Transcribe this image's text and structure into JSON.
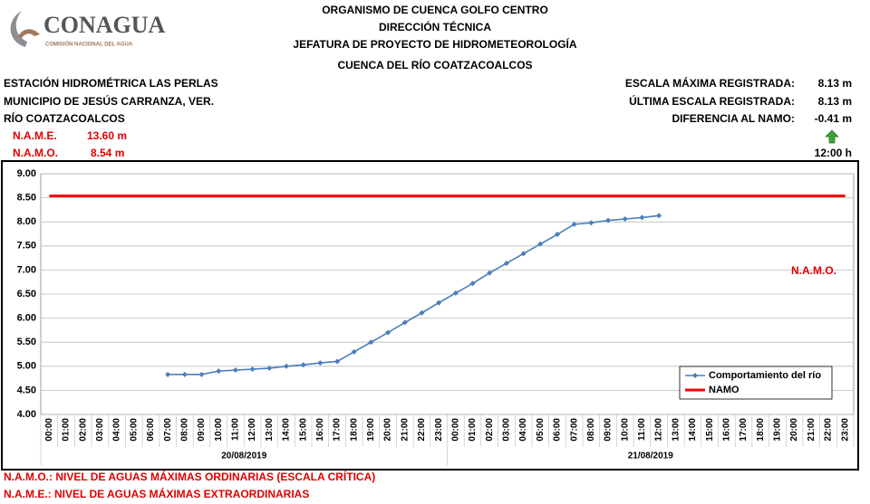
{
  "header": {
    "logo": "CONAGUA",
    "logo_subtitle": "COMISIÓN NACIONAL DEL AGUA",
    "lines": [
      "ORGANISMO DE CUENCA GOLFO CENTRO",
      "DIRECCIÓN TÉCNICA",
      "JEFATURA DE PROYECTO DE HIDROMETEOROLOGÍA",
      "CUENCA DEL RÍO COATZACOALCOS"
    ]
  },
  "station": [
    "ESTACIÓN HIDROMÉTRICA LAS PERLAS",
    "MUNICIPIO DE JESÚS CARRANZA, VER.",
    "RÍO COATZACOALCOS"
  ],
  "levels": [
    {
      "label": "N.A.M.E.",
      "value": "13.60 m"
    },
    {
      "label": "N.A.M.O.",
      "value": "8.54 m"
    }
  ],
  "stats": [
    {
      "label": "ESCALA MÁXIMA REGISTRADA:",
      "value": "8.13 m"
    },
    {
      "label": "ÚLTIMA ESCALA REGISTRADA:",
      "value": "8.13 m"
    },
    {
      "label": "DIFERENCIA AL NAMO:",
      "value": "-0.41 m"
    }
  ],
  "time": "12:00 h",
  "footer": [
    "N.A.M.O.: NIVEL DE AGUAS MÁXIMAS ORDINARIAS (ESCALA CRÍTICA)",
    "N.A.M.E.: NIVEL DE AGUAS MÁXIMAS EXTRAORDINARIAS"
  ],
  "chart_data": {
    "type": "line",
    "annotation": "N.A.M.O.",
    "dates": [
      "20/08/2019",
      "21/08/2019"
    ],
    "categories": [
      "00:00",
      "01:00",
      "02:00",
      "03:00",
      "04:00",
      "05:00",
      "06:00",
      "07:00",
      "08:00",
      "09:00",
      "10:00",
      "11:00",
      "12:00",
      "13:00",
      "14:00",
      "15:00",
      "16:00",
      "17:00",
      "18:00",
      "19:00",
      "20:00",
      "21:00",
      "22:00",
      "23:00",
      "00:00",
      "01:00",
      "02:00",
      "03:00",
      "04:00",
      "05:00",
      "06:00",
      "07:00",
      "08:00",
      "09:00",
      "10:00",
      "11:00",
      "12:00",
      "13:00",
      "14:00",
      "15:00",
      "16:00",
      "17:00",
      "18:00",
      "19:00",
      "20:00",
      "21:00",
      "22:00",
      "23:00"
    ],
    "series": [
      {
        "name": "Comportamiento del río",
        "color": "#4a7ebb",
        "values": [
          null,
          null,
          null,
          null,
          null,
          null,
          null,
          4.83,
          4.83,
          4.83,
          4.9,
          4.92,
          4.94,
          4.96,
          5.0,
          5.03,
          5.07,
          5.1,
          5.3,
          5.5,
          5.7,
          5.91,
          6.11,
          6.32,
          6.52,
          6.72,
          6.94,
          7.14,
          7.34,
          7.54,
          7.74,
          7.95,
          7.98,
          8.03,
          8.06,
          8.09,
          8.13,
          null,
          null,
          null,
          null,
          null,
          null,
          null,
          null,
          null,
          null,
          null
        ]
      },
      {
        "name": "NAMO",
        "color": "#ff0000",
        "values": [
          8.54,
          8.54,
          8.54,
          8.54,
          8.54,
          8.54,
          8.54,
          8.54,
          8.54,
          8.54,
          8.54,
          8.54,
          8.54,
          8.54,
          8.54,
          8.54,
          8.54,
          8.54,
          8.54,
          8.54,
          8.54,
          8.54,
          8.54,
          8.54,
          8.54,
          8.54,
          8.54,
          8.54,
          8.54,
          8.54,
          8.54,
          8.54,
          8.54,
          8.54,
          8.54,
          8.54,
          8.54,
          8.54,
          8.54,
          8.54,
          8.54,
          8.54,
          8.54,
          8.54,
          8.54,
          8.54,
          8.54,
          8.54
        ]
      }
    ],
    "ylim": [
      4,
      9
    ],
    "yticks": [
      {
        "value": 4,
        "label": "4.00"
      },
      {
        "value": 4.5,
        "label": "4.50"
      },
      {
        "value": 5,
        "label": "5.00"
      },
      {
        "value": 5.5,
        "label": "5.50"
      },
      {
        "value": 6,
        "label": "6.00"
      },
      {
        "value": 6.5,
        "label": "6.50"
      },
      {
        "value": 7,
        "label": "7.00"
      },
      {
        "value": 7.5,
        "label": "7.50"
      },
      {
        "value": 8,
        "label": "8.00"
      },
      {
        "value": 8.5,
        "label": "8.50"
      },
      {
        "value": 9,
        "label": "9.00"
      }
    ],
    "grid": true,
    "legend": "lower right"
  }
}
